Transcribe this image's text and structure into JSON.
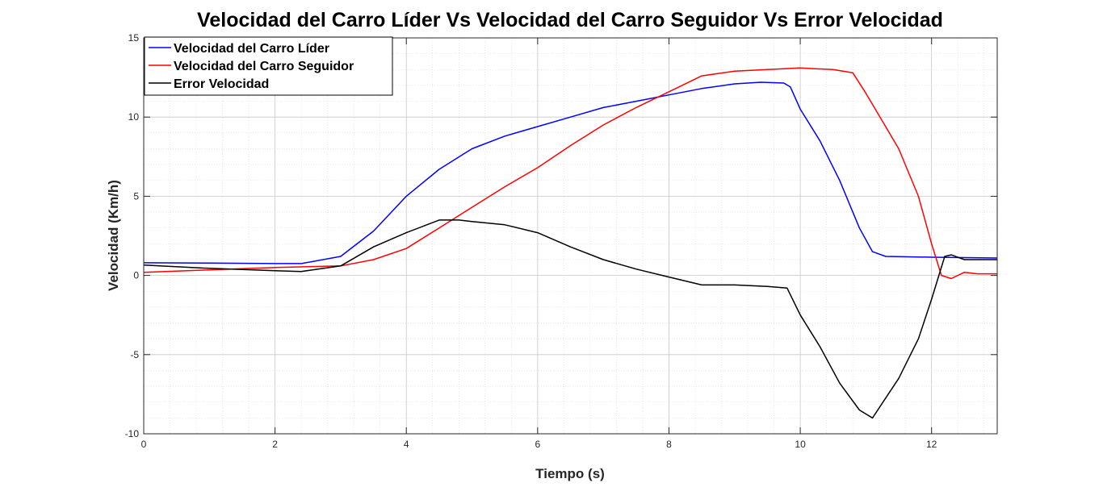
{
  "chart_data": {
    "type": "line",
    "title": "Velocidad del Carro Líder Vs Velocidad del Carro Seguidor Vs Error Velocidad",
    "xlabel": "Tiempo (s)",
    "ylabel": "Velocidad (Km/h)",
    "xlim": [
      0,
      13
    ],
    "ylim": [
      -10,
      15
    ],
    "xticks": [
      0,
      2,
      4,
      6,
      8,
      10,
      12
    ],
    "yticks": [
      -10,
      -5,
      0,
      5,
      10,
      15
    ],
    "grid": true,
    "minor_grid": true,
    "legend_position": "top-left",
    "series": [
      {
        "name": "Velocidad del Carro Líder",
        "color": "#0000ff",
        "points": [
          [
            0,
            0.8
          ],
          [
            1,
            0.78
          ],
          [
            2,
            0.75
          ],
          [
            2.4,
            0.75
          ],
          [
            3,
            1.2
          ],
          [
            3.5,
            2.8
          ],
          [
            4,
            5.0
          ],
          [
            4.5,
            6.7
          ],
          [
            5,
            8.0
          ],
          [
            5.5,
            8.8
          ],
          [
            6,
            9.4
          ],
          [
            6.5,
            10.0
          ],
          [
            7,
            10.6
          ],
          [
            7.5,
            11.0
          ],
          [
            8,
            11.4
          ],
          [
            8.5,
            11.8
          ],
          [
            9,
            12.1
          ],
          [
            9.4,
            12.2
          ],
          [
            9.75,
            12.15
          ],
          [
            9.85,
            11.9
          ],
          [
            10,
            10.5
          ],
          [
            10.3,
            8.5
          ],
          [
            10.6,
            6.0
          ],
          [
            10.9,
            3.0
          ],
          [
            11.1,
            1.5
          ],
          [
            11.3,
            1.2
          ],
          [
            12,
            1.15
          ],
          [
            13,
            1.1
          ]
        ]
      },
      {
        "name": "Velocidad del Carro Seguidor",
        "color": "#ff0000",
        "points": [
          [
            0,
            0.2
          ],
          [
            1,
            0.35
          ],
          [
            2,
            0.5
          ],
          [
            3,
            0.6
          ],
          [
            3.5,
            1.0
          ],
          [
            4,
            1.7
          ],
          [
            4.5,
            3.0
          ],
          [
            5,
            4.3
          ],
          [
            5.5,
            5.6
          ],
          [
            6,
            6.8
          ],
          [
            6.5,
            8.2
          ],
          [
            7,
            9.5
          ],
          [
            7.5,
            10.6
          ],
          [
            8,
            11.6
          ],
          [
            8.5,
            12.6
          ],
          [
            9,
            12.9
          ],
          [
            9.5,
            13.0
          ],
          [
            10,
            13.1
          ],
          [
            10.5,
            13.0
          ],
          [
            10.8,
            12.8
          ],
          [
            11,
            11.5
          ],
          [
            11.5,
            8.0
          ],
          [
            11.8,
            5.0
          ],
          [
            12,
            2.0
          ],
          [
            12.15,
            0.0
          ],
          [
            12.3,
            -0.2
          ],
          [
            12.5,
            0.2
          ],
          [
            12.7,
            0.1
          ],
          [
            13,
            0.1
          ]
        ]
      },
      {
        "name": "Error Velocidad",
        "color": "#000000",
        "points": [
          [
            0,
            0.65
          ],
          [
            1,
            0.45
          ],
          [
            2,
            0.3
          ],
          [
            2.4,
            0.25
          ],
          [
            3,
            0.6
          ],
          [
            3.5,
            1.8
          ],
          [
            4,
            2.7
          ],
          [
            4.5,
            3.5
          ],
          [
            4.8,
            3.5
          ],
          [
            5,
            3.4
          ],
          [
            5.5,
            3.2
          ],
          [
            6,
            2.7
          ],
          [
            6.5,
            1.8
          ],
          [
            7,
            1.0
          ],
          [
            7.5,
            0.4
          ],
          [
            8,
            -0.1
          ],
          [
            8.5,
            -0.6
          ],
          [
            9,
            -0.6
          ],
          [
            9.5,
            -0.7
          ],
          [
            9.8,
            -0.8
          ],
          [
            10,
            -2.5
          ],
          [
            10.3,
            -4.5
          ],
          [
            10.6,
            -6.8
          ],
          [
            10.9,
            -8.5
          ],
          [
            11.1,
            -9.0
          ],
          [
            11.5,
            -6.5
          ],
          [
            11.8,
            -4.0
          ],
          [
            12,
            -1.5
          ],
          [
            12.2,
            1.2
          ],
          [
            12.3,
            1.3
          ],
          [
            12.5,
            1.0
          ],
          [
            12.7,
            1.0
          ],
          [
            13,
            1.0
          ]
        ]
      }
    ]
  }
}
